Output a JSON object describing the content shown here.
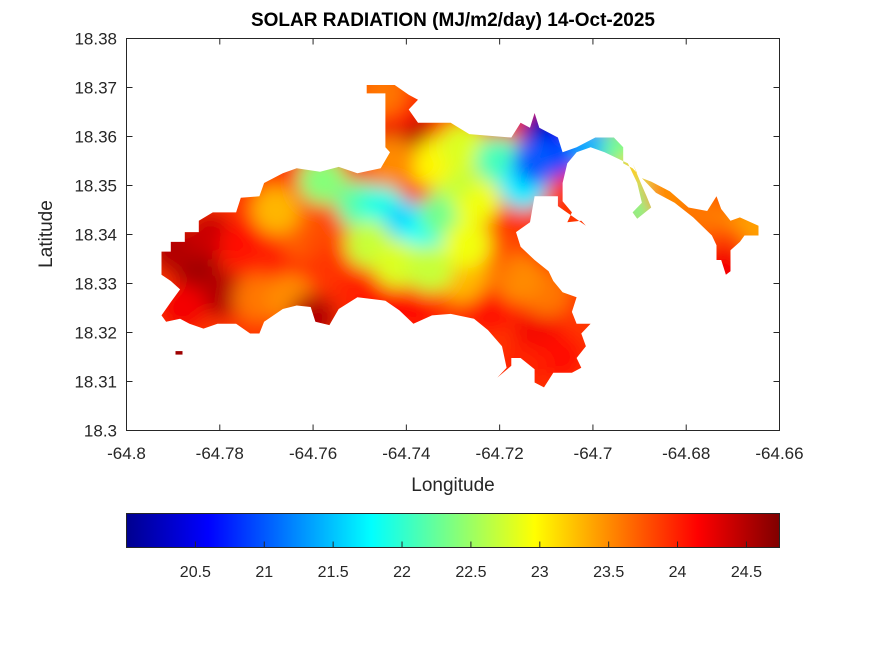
{
  "chart_data": {
    "type": "heatmap",
    "subtype": "filled-contour-map",
    "title": "SOLAR RADIATION (MJ/m2/day) 14-Oct-2025",
    "xlabel": "Longitude",
    "ylabel": "Latitude",
    "xlim": [
      -64.8,
      -64.66
    ],
    "ylim": [
      18.3,
      18.38
    ],
    "xticks": [
      -64.8,
      -64.78,
      -64.76,
      -64.74,
      -64.72,
      -64.7,
      -64.68,
      -64.66
    ],
    "xtick_labels": [
      "-64.8",
      "-64.78",
      "-64.76",
      "-64.74",
      "-64.72",
      "-64.7",
      "-64.68",
      "-64.66"
    ],
    "yticks": [
      18.3,
      18.31,
      18.32,
      18.33,
      18.34,
      18.35,
      18.36,
      18.37,
      18.38
    ],
    "ytick_labels": [
      "18.3",
      "18.31",
      "18.32",
      "18.33",
      "18.34",
      "18.35",
      "18.36",
      "18.37",
      "18.38"
    ],
    "grid": false,
    "colormap": "jet",
    "colorbar": {
      "placement": "bottom",
      "clim": [
        20.0,
        24.74
      ],
      "ticks": [
        20.5,
        21,
        21.5,
        22,
        22.5,
        23,
        23.5,
        24,
        24.5
      ],
      "tick_labels": [
        "20.5",
        "21",
        "21.5",
        "22",
        "22.5",
        "23",
        "23.5",
        "24",
        "24.5"
      ]
    },
    "outline_lonlat": [
      [
        -64.7925,
        18.3365
      ],
      [
        -64.7905,
        18.3365
      ],
      [
        -64.7905,
        18.3385
      ],
      [
        -64.7875,
        18.3385
      ],
      [
        -64.7875,
        18.3405
      ],
      [
        -64.7845,
        18.3405
      ],
      [
        -64.7845,
        18.3428
      ],
      [
        -64.7815,
        18.3445
      ],
      [
        -64.7765,
        18.3445
      ],
      [
        -64.7755,
        18.3475
      ],
      [
        -64.7715,
        18.3478
      ],
      [
        -64.7705,
        18.3505
      ],
      [
        -64.7665,
        18.3525
      ],
      [
        -64.7635,
        18.3535
      ],
      [
        -64.7585,
        18.3528
      ],
      [
        -64.7545,
        18.3538
      ],
      [
        -64.7505,
        18.3525
      ],
      [
        -64.7455,
        18.3535
      ],
      [
        -64.7435,
        18.3568
      ],
      [
        -64.7445,
        18.3578
      ],
      [
        -64.7445,
        18.3688
      ],
      [
        -64.7485,
        18.3688
      ],
      [
        -64.7485,
        18.3705
      ],
      [
        -64.7425,
        18.3705
      ],
      [
        -64.7395,
        18.3685
      ],
      [
        -64.7375,
        18.3675
      ],
      [
        -64.7395,
        18.3655
      ],
      [
        -64.7375,
        18.3628
      ],
      [
        -64.7305,
        18.3628
      ],
      [
        -64.7265,
        18.3605
      ],
      [
        -64.7175,
        18.3598
      ],
      [
        -64.7155,
        18.3628
      ],
      [
        -64.7135,
        18.3618
      ],
      [
        -64.7125,
        18.3648
      ],
      [
        -64.7115,
        18.3618
      ],
      [
        -64.7075,
        18.3598
      ],
      [
        -64.7065,
        18.3568
      ],
      [
        -64.7035,
        18.3578
      ],
      [
        -64.6995,
        18.3598
      ],
      [
        -64.6955,
        18.3598
      ],
      [
        -64.6935,
        18.3578
      ],
      [
        -64.6935,
        18.3545
      ],
      [
        -64.6915,
        18.3535
      ],
      [
        -64.6895,
        18.3515
      ],
      [
        -64.6875,
        18.3508
      ],
      [
        -64.6835,
        18.3488
      ],
      [
        -64.6795,
        18.3455
      ],
      [
        -64.6755,
        18.3448
      ],
      [
        -64.6735,
        18.3478
      ],
      [
        -64.6725,
        18.3452
      ],
      [
        -64.6705,
        18.3428
      ],
      [
        -64.6685,
        18.3435
      ],
      [
        -64.6645,
        18.3418
      ],
      [
        -64.6645,
        18.3398
      ],
      [
        -64.6675,
        18.3398
      ],
      [
        -64.6685,
        18.3385
      ],
      [
        -64.6705,
        18.3368
      ],
      [
        -64.6705,
        18.3325
      ],
      [
        -64.6715,
        18.3318
      ],
      [
        -64.6725,
        18.3348
      ],
      [
        -64.6735,
        18.3348
      ],
      [
        -64.6735,
        18.3378
      ],
      [
        -64.6745,
        18.3398
      ],
      [
        -64.6785,
        18.3435
      ],
      [
        -64.6825,
        18.3465
      ],
      [
        -64.6865,
        18.3485
      ],
      [
        -64.6885,
        18.3505
      ],
      [
        -64.6905,
        18.3525
      ],
      [
        -64.6915,
        18.3545
      ],
      [
        -64.6925,
        18.3555
      ],
      [
        -64.6915,
        18.3545
      ],
      [
        -64.6895,
        18.35
      ],
      [
        -64.6885,
        18.3478
      ],
      [
        -64.6875,
        18.3455
      ],
      [
        -64.6905,
        18.3432
      ],
      [
        -64.6915,
        18.3445
      ],
      [
        -64.6895,
        18.3465
      ],
      [
        -64.6905,
        18.3505
      ],
      [
        -64.6925,
        18.3545
      ],
      [
        -64.6975,
        18.3568
      ],
      [
        -64.7005,
        18.3578
      ],
      [
        -64.7035,
        18.3568
      ],
      [
        -64.7055,
        18.3545
      ],
      [
        -64.7065,
        18.3505
      ],
      [
        -64.7065,
        18.3468
      ],
      [
        -64.7045,
        18.3445
      ],
      [
        -64.7055,
        18.3425
      ],
      [
        -64.7025,
        18.3428
      ],
      [
        -64.7015,
        18.3418
      ],
      [
        -64.7075,
        18.3458
      ],
      [
        -64.7075,
        18.3478
      ],
      [
        -64.7125,
        18.3478
      ],
      [
        -64.7135,
        18.3425
      ],
      [
        -64.7165,
        18.3405
      ],
      [
        -64.7155,
        18.3375
      ],
      [
        -64.7125,
        18.3348
      ],
      [
        -64.7095,
        18.3325
      ],
      [
        -64.7085,
        18.3305
      ],
      [
        -64.7065,
        18.3282
      ],
      [
        -64.7035,
        18.3272
      ],
      [
        -64.7045,
        18.3242
      ],
      [
        -64.7035,
        18.3218
      ],
      [
        -64.7005,
        18.3218
      ],
      [
        -64.7025,
        18.3198
      ],
      [
        -64.7015,
        18.3172
      ],
      [
        -64.7035,
        18.3148
      ],
      [
        -64.7025,
        18.3128
      ],
      [
        -64.7045,
        18.3118
      ],
      [
        -64.7085,
        18.3118
      ],
      [
        -64.7105,
        18.3088
      ],
      [
        -64.7125,
        18.3098
      ],
      [
        -64.7125,
        18.3125
      ],
      [
        -64.7155,
        18.3148
      ],
      [
        -64.7175,
        18.3148
      ],
      [
        -64.7175,
        18.3132
      ],
      [
        -64.7205,
        18.3108
      ],
      [
        -64.7185,
        18.3128
      ],
      [
        -64.7195,
        18.3172
      ],
      [
        -64.7225,
        18.3205
      ],
      [
        -64.7255,
        18.3228
      ],
      [
        -64.7305,
        18.3238
      ],
      [
        -64.7345,
        18.3235
      ],
      [
        -64.7385,
        18.3218
      ],
      [
        -64.7415,
        18.3245
      ],
      [
        -64.7445,
        18.3265
      ],
      [
        -64.7505,
        18.3272
      ],
      [
        -64.7545,
        18.3248
      ],
      [
        -64.7565,
        18.3215
      ],
      [
        -64.7595,
        18.3222
      ],
      [
        -64.7605,
        18.3252
      ],
      [
        -64.7635,
        18.3255
      ],
      [
        -64.7665,
        18.3248
      ],
      [
        -64.7705,
        18.3222
      ],
      [
        -64.7715,
        18.3198
      ],
      [
        -64.7735,
        18.3198
      ],
      [
        -64.7765,
        18.3218
      ],
      [
        -64.7805,
        18.3218
      ],
      [
        -64.7835,
        18.3208
      ],
      [
        -64.7865,
        18.3218
      ],
      [
        -64.7885,
        18.3228
      ],
      [
        -64.7915,
        18.3222
      ],
      [
        -64.7925,
        18.3235
      ],
      [
        -64.7905,
        18.3262
      ],
      [
        -64.7885,
        18.3288
      ],
      [
        -64.7905,
        18.3305
      ],
      [
        -64.7925,
        18.3318
      ],
      [
        -64.7925,
        18.3365
      ]
    ],
    "islet_lonlat": [
      [
        -64.7895,
        18.3155
      ],
      [
        -64.788,
        18.3155
      ],
      [
        -64.788,
        18.3162
      ],
      [
        -64.7895,
        18.3162
      ]
    ],
    "value_field": [
      {
        "lon": -64.785,
        "lat": 18.333,
        "value": 24.6
      },
      {
        "lon": -64.79,
        "lat": 18.337,
        "value": 24.5
      },
      {
        "lon": -64.78,
        "lat": 18.328,
        "value": 24.5
      },
      {
        "lon": -64.788,
        "lat": 18.325,
        "value": 24.2
      },
      {
        "lon": -64.782,
        "lat": 18.34,
        "value": 24.4
      },
      {
        "lon": -64.775,
        "lat": 18.338,
        "value": 24.1
      },
      {
        "lon": -64.77,
        "lat": 18.333,
        "value": 24.0
      },
      {
        "lon": -64.772,
        "lat": 18.327,
        "value": 23.6
      },
      {
        "lon": -64.765,
        "lat": 18.327,
        "value": 23.5
      },
      {
        "lon": -64.76,
        "lat": 18.323,
        "value": 24.5
      },
      {
        "lon": -64.762,
        "lat": 18.34,
        "value": 23.7
      },
      {
        "lon": -64.768,
        "lat": 18.345,
        "value": 23.3
      },
      {
        "lon": -64.757,
        "lat": 18.338,
        "value": 23.8
      },
      {
        "lon": -64.755,
        "lat": 18.333,
        "value": 23.9
      },
      {
        "lon": -64.75,
        "lat": 18.328,
        "value": 24.0
      },
      {
        "lon": -64.745,
        "lat": 18.325,
        "value": 24.1
      },
      {
        "lon": -64.738,
        "lat": 18.325,
        "value": 24.1
      },
      {
        "lon": -64.73,
        "lat": 18.327,
        "value": 23.9
      },
      {
        "lon": -64.722,
        "lat": 18.325,
        "value": 24.1
      },
      {
        "lon": -64.712,
        "lat": 18.32,
        "value": 24.2
      },
      {
        "lon": -64.707,
        "lat": 18.315,
        "value": 24.1
      },
      {
        "lon": -64.715,
        "lat": 18.313,
        "value": 24.0
      },
      {
        "lon": -64.71,
        "lat": 18.328,
        "value": 23.6
      },
      {
        "lon": -64.716,
        "lat": 18.331,
        "value": 23.5
      },
      {
        "lon": -64.722,
        "lat": 18.334,
        "value": 23.6
      },
      {
        "lon": -64.728,
        "lat": 18.331,
        "value": 23.3
      },
      {
        "lon": -64.72,
        "lat": 18.34,
        "value": 23.8
      },
      {
        "lon": -64.718,
        "lat": 18.346,
        "value": 24.0
      },
      {
        "lon": -64.75,
        "lat": 18.346,
        "value": 22.2
      },
      {
        "lon": -64.758,
        "lat": 18.351,
        "value": 22.4
      },
      {
        "lon": -64.745,
        "lat": 18.345,
        "value": 21.9
      },
      {
        "lon": -64.74,
        "lat": 18.342,
        "value": 21.6
      },
      {
        "lon": -64.736,
        "lat": 18.339,
        "value": 21.8
      },
      {
        "lon": -64.732,
        "lat": 18.344,
        "value": 22.3
      },
      {
        "lon": -64.748,
        "lat": 18.338,
        "value": 22.7
      },
      {
        "lon": -64.742,
        "lat": 18.334,
        "value": 22.8
      },
      {
        "lon": -64.735,
        "lat": 18.333,
        "value": 22.7
      },
      {
        "lon": -64.727,
        "lat": 18.338,
        "value": 22.9
      },
      {
        "lon": -64.725,
        "lat": 18.347,
        "value": 22.9
      },
      {
        "lon": -64.73,
        "lat": 18.352,
        "value": 22.7
      },
      {
        "lon": -64.735,
        "lat": 18.355,
        "value": 23.0
      },
      {
        "lon": -64.728,
        "lat": 18.358,
        "value": 22.8
      },
      {
        "lon": -64.74,
        "lat": 18.362,
        "value": 24.5
      },
      {
        "lon": -64.742,
        "lat": 18.366,
        "value": 24.0
      },
      {
        "lon": -64.745,
        "lat": 18.369,
        "value": 23.6
      },
      {
        "lon": -64.743,
        "lat": 18.355,
        "value": 23.5
      },
      {
        "lon": -64.72,
        "lat": 18.355,
        "value": 22.1
      },
      {
        "lon": -64.715,
        "lat": 18.35,
        "value": 21.7
      },
      {
        "lon": -64.71,
        "lat": 18.361,
        "value": 20.2
      },
      {
        "lon": -64.707,
        "lat": 18.357,
        "value": 20.6
      },
      {
        "lon": -64.712,
        "lat": 18.355,
        "value": 21.0
      },
      {
        "lon": -64.7,
        "lat": 18.358,
        "value": 21.4
      },
      {
        "lon": -64.693,
        "lat": 18.357,
        "value": 22.3
      },
      {
        "lon": -64.69,
        "lat": 18.352,
        "value": 23.2
      },
      {
        "lon": -64.689,
        "lat": 18.346,
        "value": 22.3
      },
      {
        "lon": -64.684,
        "lat": 18.348,
        "value": 23.5
      },
      {
        "lon": -64.676,
        "lat": 18.344,
        "value": 23.6
      },
      {
        "lon": -64.67,
        "lat": 18.34,
        "value": 23.5
      },
      {
        "lon": -64.666,
        "lat": 18.341,
        "value": 23.4
      },
      {
        "lon": -64.672,
        "lat": 18.337,
        "value": 23.8
      },
      {
        "lon": -64.672,
        "lat": 18.333,
        "value": 24.2
      },
      {
        "lon": -64.705,
        "lat": 18.344,
        "value": 23.9
      }
    ]
  }
}
